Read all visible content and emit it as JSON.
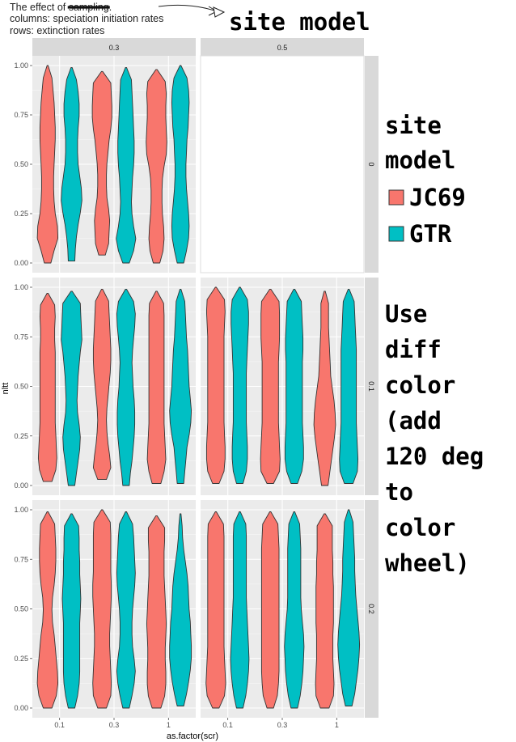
{
  "caption": {
    "line1_prefix": "The effect of ",
    "line1_struck": "sampling",
    "line1_suffix": ".",
    "line2": "columns: speciation initiation rates",
    "line3": "rows: extinction rates"
  },
  "annotations": {
    "top_note": "site model",
    "legend_note_lines": [
      "site",
      "model"
    ],
    "side_note_lines": [
      "Use",
      "diff",
      "color",
      "(add",
      "120 deg",
      "to",
      "color",
      "wheel)"
    ]
  },
  "colors": {
    "JC69": "#F8766D",
    "GTR": "#00BFC4",
    "panel_bg": "#EBEBEB",
    "strip_bg": "#D9D9D9",
    "grid": "#FFFFFF"
  },
  "chart_data": {
    "type": "violin",
    "xlabel": "as.factor(scr)",
    "ylabel": "nltt",
    "ylim": [
      0,
      1
    ],
    "y_ticks": [
      "0.00",
      "0.25",
      "0.50",
      "0.75",
      "1.00"
    ],
    "x_categories": [
      "0.1",
      "0.3",
      "1"
    ],
    "col_facets": [
      "0.3",
      "0.5"
    ],
    "row_facets": [
      "0",
      "0.1",
      "0.2"
    ],
    "legend": {
      "entries": [
        {
          "label": "JC69",
          "color": "#F8766D"
        },
        {
          "label": "GTR",
          "color": "#00BFC4"
        }
      ]
    },
    "panels": [
      {
        "row": "0",
        "col": "0.3",
        "violins": [
          {
            "x": "0.1",
            "model": "JC69",
            "min": 0.0,
            "max": 1.0,
            "widths": [
              0.3,
              0.6,
              0.95,
              0.9,
              0.7,
              0.6,
              0.55,
              0.55,
              0.6,
              0.65,
              0.7,
              0.7,
              0.65,
              0.6,
              0.5,
              0.4,
              0.05
            ]
          },
          {
            "x": "0.1",
            "model": "GTR",
            "min": 0.01,
            "max": 0.99,
            "widths": [
              0.3,
              0.35,
              0.45,
              0.6,
              0.8,
              0.95,
              0.9,
              0.75,
              0.6,
              0.55,
              0.55,
              0.6,
              0.7,
              0.7,
              0.6,
              0.45,
              0.05
            ]
          },
          {
            "x": "0.3",
            "model": "JC69",
            "min": 0.04,
            "max": 0.97,
            "widths": [
              0.3,
              0.6,
              0.65,
              0.7,
              0.6,
              0.45,
              0.4,
              0.4,
              0.45,
              0.55,
              0.65,
              0.8,
              0.9,
              0.9,
              0.85,
              0.8,
              0.05
            ]
          },
          {
            "x": "0.3",
            "model": "GTR",
            "min": 0.0,
            "max": 0.99,
            "widths": [
              0.3,
              0.7,
              0.9,
              0.7,
              0.55,
              0.5,
              0.55,
              0.6,
              0.7,
              0.75,
              0.75,
              0.7,
              0.65,
              0.6,
              0.55,
              0.5,
              0.05
            ]
          },
          {
            "x": "1",
            "model": "JC69",
            "min": 0.0,
            "max": 0.98,
            "widths": [
              0.3,
              0.6,
              0.7,
              0.65,
              0.55,
              0.5,
              0.5,
              0.55,
              0.7,
              0.9,
              0.95,
              0.9,
              0.85,
              0.85,
              0.9,
              0.8,
              0.05
            ]
          },
          {
            "x": "1",
            "model": "GTR",
            "min": 0.0,
            "max": 1.0,
            "widths": [
              0.3,
              0.55,
              0.75,
              0.8,
              0.75,
              0.65,
              0.55,
              0.5,
              0.5,
              0.55,
              0.6,
              0.7,
              0.75,
              0.8,
              0.75,
              0.6,
              0.05
            ]
          }
        ]
      },
      {
        "row": "0",
        "col": "0.5",
        "violins": []
      },
      {
        "row": "0.1",
        "col": "0.3",
        "violins": [
          {
            "x": "0.1",
            "model": "JC69",
            "min": 0.02,
            "max": 0.97,
            "widths": [
              0.4,
              0.75,
              0.85,
              0.8,
              0.75,
              0.7,
              0.7,
              0.7,
              0.7,
              0.7,
              0.7,
              0.7,
              0.65,
              0.65,
              0.7,
              0.65,
              0.05
            ]
          },
          {
            "x": "0.1",
            "model": "GTR",
            "min": 0.0,
            "max": 0.98,
            "widths": [
              0.3,
              0.45,
              0.6,
              0.75,
              0.8,
              0.7,
              0.55,
              0.5,
              0.55,
              0.6,
              0.7,
              0.8,
              0.95,
              0.9,
              0.85,
              0.8,
              0.05
            ]
          },
          {
            "x": "0.3",
            "model": "JC69",
            "min": 0.03,
            "max": 0.99,
            "widths": [
              0.4,
              0.8,
              0.7,
              0.55,
              0.45,
              0.4,
              0.45,
              0.55,
              0.65,
              0.75,
              0.8,
              0.8,
              0.75,
              0.7,
              0.65,
              0.6,
              0.05
            ]
          },
          {
            "x": "0.3",
            "model": "GTR",
            "min": 0.0,
            "max": 0.99,
            "widths": [
              0.3,
              0.4,
              0.55,
              0.65,
              0.75,
              0.8,
              0.8,
              0.75,
              0.65,
              0.6,
              0.55,
              0.6,
              0.7,
              0.8,
              0.85,
              0.7,
              0.05
            ]
          },
          {
            "x": "1",
            "model": "JC69",
            "min": 0.01,
            "max": 0.98,
            "widths": [
              0.4,
              0.7,
              0.85,
              0.8,
              0.75,
              0.7,
              0.7,
              0.7,
              0.7,
              0.7,
              0.7,
              0.7,
              0.7,
              0.7,
              0.7,
              0.65,
              0.05
            ]
          },
          {
            "x": "1",
            "model": "GTR",
            "min": 0.01,
            "max": 0.99,
            "widths": [
              0.3,
              0.4,
              0.5,
              0.6,
              0.8,
              0.95,
              1.0,
              0.9,
              0.8,
              0.75,
              0.7,
              0.65,
              0.55,
              0.5,
              0.45,
              0.4,
              0.05
            ]
          }
        ]
      },
      {
        "row": "0.1",
        "col": "0.5",
        "violins": [
          {
            "x": "0.1",
            "model": "JC69",
            "min": 0.01,
            "max": 1.0,
            "widths": [
              0.3,
              0.75,
              0.85,
              0.85,
              0.8,
              0.75,
              0.75,
              0.75,
              0.75,
              0.75,
              0.75,
              0.75,
              0.75,
              0.8,
              0.85,
              0.8,
              0.05
            ]
          },
          {
            "x": "0.1",
            "model": "GTR",
            "min": 0.01,
            "max": 1.0,
            "widths": [
              0.3,
              0.6,
              0.7,
              0.7,
              0.65,
              0.6,
              0.6,
              0.6,
              0.6,
              0.6,
              0.65,
              0.7,
              0.75,
              0.8,
              0.8,
              0.7,
              0.05
            ]
          },
          {
            "x": "0.3",
            "model": "JC69",
            "min": 0.01,
            "max": 0.99,
            "widths": [
              0.3,
              0.85,
              0.9,
              0.85,
              0.8,
              0.75,
              0.75,
              0.75,
              0.75,
              0.75,
              0.75,
              0.8,
              0.85,
              0.85,
              0.85,
              0.8,
              0.05
            ]
          },
          {
            "x": "0.3",
            "model": "GTR",
            "min": 0.01,
            "max": 0.99,
            "widths": [
              0.3,
              0.7,
              0.85,
              0.85,
              0.8,
              0.75,
              0.75,
              0.75,
              0.75,
              0.75,
              0.75,
              0.8,
              0.8,
              0.75,
              0.7,
              0.65,
              0.05
            ]
          },
          {
            "x": "1",
            "model": "JC69",
            "min": 0.0,
            "max": 0.98,
            "widths": [
              0.3,
              0.45,
              0.6,
              0.75,
              0.9,
              1.0,
              0.95,
              0.85,
              0.7,
              0.55,
              0.5,
              0.45,
              0.4,
              0.35,
              0.35,
              0.35,
              0.05
            ]
          },
          {
            "x": "1",
            "model": "GTR",
            "min": 0.01,
            "max": 0.99,
            "widths": [
              0.4,
              0.8,
              0.85,
              0.8,
              0.75,
              0.7,
              0.7,
              0.7,
              0.7,
              0.7,
              0.7,
              0.7,
              0.65,
              0.6,
              0.55,
              0.5,
              0.05
            ]
          }
        ]
      },
      {
        "row": "0.2",
        "col": "0.3",
        "violins": [
          {
            "x": "0.1",
            "model": "JC69",
            "min": 0.0,
            "max": 0.99,
            "widths": [
              0.4,
              0.8,
              0.95,
              0.9,
              0.8,
              0.7,
              0.6,
              0.45,
              0.4,
              0.45,
              0.6,
              0.7,
              0.75,
              0.75,
              0.7,
              0.65,
              0.05
            ]
          },
          {
            "x": "0.1",
            "model": "GTR",
            "min": 0.0,
            "max": 0.98,
            "widths": [
              0.3,
              0.55,
              0.7,
              0.75,
              0.75,
              0.75,
              0.75,
              0.75,
              0.8,
              0.85,
              0.8,
              0.75,
              0.75,
              0.7,
              0.7,
              0.65,
              0.05
            ]
          },
          {
            "x": "0.3",
            "model": "JC69",
            "min": 0.0,
            "max": 1.0,
            "widths": [
              0.4,
              0.8,
              0.85,
              0.8,
              0.75,
              0.7,
              0.7,
              0.75,
              0.8,
              0.85,
              0.85,
              0.8,
              0.8,
              0.8,
              0.8,
              0.75,
              0.05
            ]
          },
          {
            "x": "0.3",
            "model": "GTR",
            "min": 0.0,
            "max": 0.99,
            "widths": [
              0.3,
              0.55,
              0.75,
              0.85,
              0.75,
              0.6,
              0.55,
              0.55,
              0.6,
              0.7,
              0.8,
              0.85,
              0.8,
              0.75,
              0.7,
              0.6,
              0.05
            ]
          },
          {
            "x": "1",
            "model": "JC69",
            "min": 0.0,
            "max": 0.97,
            "widths": [
              0.4,
              0.75,
              0.85,
              0.85,
              0.8,
              0.8,
              0.85,
              0.9,
              0.85,
              0.8,
              0.75,
              0.7,
              0.7,
              0.7,
              0.75,
              0.75,
              0.05
            ]
          },
          {
            "x": "1",
            "model": "GTR",
            "min": 0.01,
            "max": 0.98,
            "widths": [
              0.3,
              0.55,
              0.75,
              0.9,
              1.0,
              1.0,
              0.95,
              0.9,
              0.8,
              0.75,
              0.7,
              0.6,
              0.45,
              0.3,
              0.2,
              0.15,
              0.05
            ]
          }
        ]
      },
      {
        "row": "0.2",
        "col": "0.5",
        "violins": [
          {
            "x": "0.1",
            "model": "JC69",
            "min": 0.0,
            "max": 0.99,
            "widths": [
              0.3,
              0.8,
              0.9,
              0.85,
              0.8,
              0.75,
              0.75,
              0.75,
              0.75,
              0.75,
              0.75,
              0.75,
              0.75,
              0.75,
              0.75,
              0.7,
              0.05
            ]
          },
          {
            "x": "0.1",
            "model": "GTR",
            "min": 0.0,
            "max": 0.99,
            "widths": [
              0.3,
              0.55,
              0.7,
              0.8,
              0.85,
              0.8,
              0.75,
              0.7,
              0.65,
              0.6,
              0.6,
              0.6,
              0.6,
              0.6,
              0.6,
              0.55,
              0.05
            ]
          },
          {
            "x": "0.3",
            "model": "JC69",
            "min": 0.0,
            "max": 0.99,
            "widths": [
              0.3,
              0.65,
              0.75,
              0.8,
              0.8,
              0.8,
              0.8,
              0.8,
              0.8,
              0.8,
              0.8,
              0.8,
              0.8,
              0.8,
              0.75,
              0.7,
              0.05
            ]
          },
          {
            "x": "0.3",
            "model": "GTR",
            "min": 0.0,
            "max": 0.99,
            "widths": [
              0.3,
              0.55,
              0.7,
              0.8,
              0.85,
              0.9,
              0.85,
              0.75,
              0.65,
              0.6,
              0.6,
              0.6,
              0.6,
              0.6,
              0.55,
              0.5,
              0.05
            ]
          },
          {
            "x": "1",
            "model": "JC69",
            "min": 0.0,
            "max": 0.98,
            "widths": [
              0.4,
              0.8,
              0.85,
              0.8,
              0.75,
              0.75,
              0.75,
              0.8,
              0.8,
              0.8,
              0.8,
              0.75,
              0.75,
              0.7,
              0.7,
              0.7,
              0.05
            ]
          },
          {
            "x": "1",
            "model": "GTR",
            "min": 0.01,
            "max": 1.0,
            "widths": [
              0.3,
              0.55,
              0.7,
              0.85,
              0.95,
              1.0,
              0.95,
              0.85,
              0.75,
              0.65,
              0.6,
              0.55,
              0.55,
              0.5,
              0.45,
              0.4,
              0.05
            ]
          }
        ]
      }
    ]
  }
}
